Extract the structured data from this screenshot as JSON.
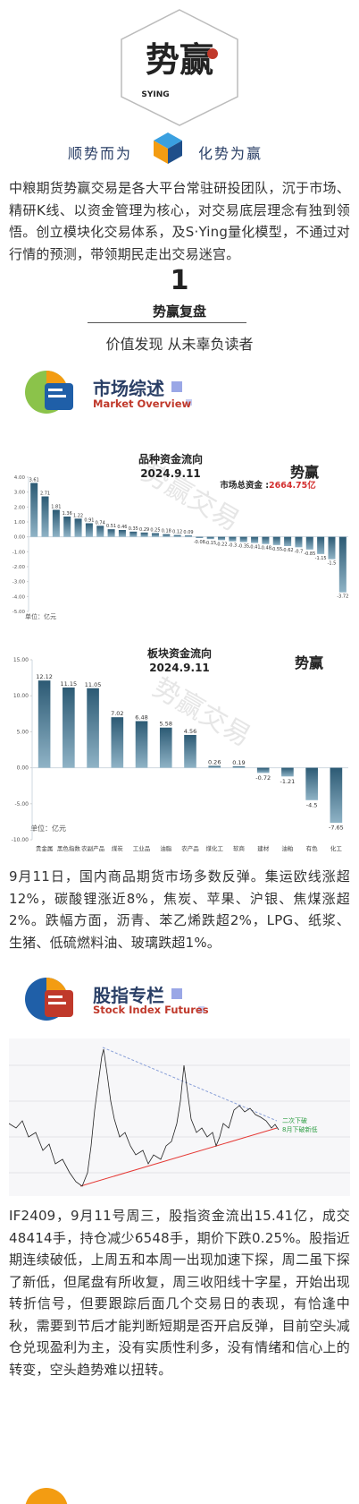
{
  "logo": {
    "brand": "SYING",
    "mark": "势赢"
  },
  "slogan": {
    "left": "顺势而为",
    "right": "化势为赢"
  },
  "intro": "中粮期货势赢交易是各大平台常驻研投团队，沉于市场、精研K线、以资金管理为核心，对交易底层理念有独到领悟。创立模块化交易体系，及S·Ying量化模型，不通过对行情的预测，带领期民走出交易迷宫。",
  "section": {
    "number": "1",
    "title": "势赢复盘",
    "tagline": "价值发现 从未辜负读者"
  },
  "market": {
    "title": "市场综述",
    "subtitle": "Market Overview"
  },
  "charts": [
    {
      "type": "bar",
      "title": "品种资金流向",
      "date": "2024.9.11",
      "total_label": "市场总资金 :",
      "total": "2664.75亿",
      "unit": "单位：亿元",
      "watermark": "势赢交易",
      "values": [
        3.61,
        2.71,
        1.81,
        1.36,
        1.22,
        0.91,
        0.74,
        0.51,
        0.46,
        0.35,
        0.29,
        0.25,
        0.18,
        0.12,
        0.09,
        -0.08,
        -0.15,
        -0.22,
        -0.3,
        -0.35,
        -0.41,
        -0.48,
        -0.55,
        -0.62,
        -0.7,
        -0.85,
        -1.15,
        -1.5,
        -3.72
      ],
      "ylim": [
        -5,
        4
      ],
      "yticks": [
        {
          "value": 4,
          "label": "4.00"
        },
        {
          "value": 3,
          "label": "3.00"
        },
        {
          "value": 2,
          "label": "2.00"
        },
        {
          "value": 1,
          "label": "1.00"
        },
        {
          "value": 0,
          "label": "0.00"
        },
        {
          "value": -1,
          "label": "-1.00"
        },
        {
          "value": -2,
          "label": "-2.00"
        },
        {
          "value": -3,
          "label": "-3.00"
        },
        {
          "value": -4,
          "label": "-4.00"
        },
        {
          "value": -5,
          "label": "-5.00"
        }
      ]
    },
    {
      "type": "bar",
      "title": "板块资金流向",
      "date": "2024.9.11",
      "unit": "单位：亿元",
      "watermark": "势赢交易",
      "categories": [
        "贵金属",
        "黑色指数",
        "农副产品",
        "煤炭",
        "工业品",
        "油脂",
        "农产品",
        "煤化工",
        "软商",
        "建材",
        "油粕",
        "有色",
        "化工"
      ],
      "values": [
        12.12,
        11.15,
        11.05,
        7.02,
        6.48,
        5.58,
        4.56,
        0.26,
        0.19,
        -0.72,
        -1.21,
        -4.5,
        -7.65
      ],
      "ylim": [
        -10,
        15
      ],
      "yticks": [
        {
          "value": 15,
          "label": "15.00"
        },
        {
          "value": 10,
          "label": "10.00"
        },
        {
          "value": 5,
          "label": "5.00"
        },
        {
          "value": 0,
          "label": "0.00"
        },
        {
          "value": -5,
          "label": "-5.00"
        },
        {
          "value": -10,
          "label": "-10.00"
        }
      ]
    }
  ],
  "market_text": "9月11日，国内商品期货市场多数反弹。集运欧线涨超12%，碳酸锂涨近8%，焦炭、苹果、沪银、焦煤涨超2%。跌幅方面，沥青、苯乙烯跌超2%，LPG、纸浆、生猪、低硫燃料油、玻璃跌超1%。",
  "index": {
    "title": "股指专栏",
    "subtitle": "Stock Index Futures",
    "annotations": [
      "二次下破",
      "8月下破新低"
    ]
  },
  "index_text": "IF2409，9月11号周三，股指资金流出15.41亿，成交48414手，持仓减少6548手，期价下跌0.25%。股指近期连续破低，上周五和本周一出现加速下探，周二虽下探了新低，但尾盘有所收复，周三收阳线十字星，开始出现转折信号，但要跟踪后面几个交易日的表现，有恰逢中秋，需要到节后才能判断短期是否开启反弹，目前空头减仓兑现盈利为主，没有实质性利多，没有情绪和信心上的转变，空头趋势难以扭转。"
}
